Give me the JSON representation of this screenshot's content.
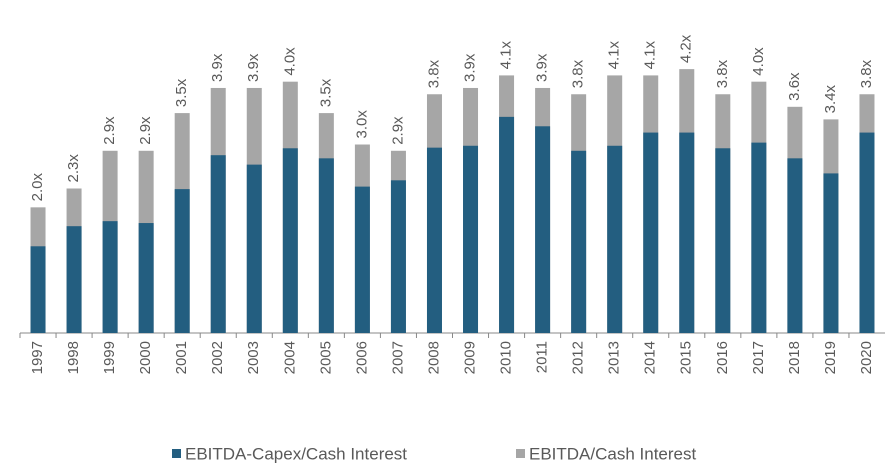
{
  "chart_data": {
    "type": "bar",
    "mode": "overlap",
    "categories": [
      "1997",
      "1998",
      "1999",
      "2000",
      "2001",
      "2002",
      "2003",
      "2004",
      "2005",
      "2006",
      "2007",
      "2008",
      "2009",
      "2010",
      "2011",
      "2012",
      "2013",
      "2014",
      "2015",
      "2016",
      "2017",
      "2018",
      "2019",
      "2020"
    ],
    "series": [
      {
        "name": "EBITDA-Capex/Cash Interest",
        "color": "#235e80",
        "values": [
          1.38,
          1.7,
          1.78,
          1.75,
          2.29,
          2.83,
          2.68,
          2.94,
          2.78,
          2.33,
          2.43,
          2.95,
          2.98,
          3.44,
          3.29,
          2.9,
          2.98,
          3.19,
          3.19,
          2.94,
          3.03,
          2.78,
          2.54,
          3.19
        ]
      },
      {
        "name": "EBITDA/Cash Interest",
        "color": "#a6a6a6",
        "values": [
          2.0,
          2.3,
          2.9,
          2.9,
          3.5,
          3.9,
          3.9,
          4.0,
          3.5,
          3.0,
          2.9,
          3.8,
          3.9,
          4.1,
          3.9,
          3.8,
          4.1,
          4.1,
          4.2,
          3.8,
          4.0,
          3.6,
          3.4,
          3.8
        ],
        "value_labels": [
          "2.0x",
          "2.3x",
          "2.9x",
          "2.9x",
          "3.5x",
          "3.9x",
          "3.9x",
          "4.0x",
          "3.5x",
          "3.0x",
          "2.9x",
          "3.8x",
          "3.9x",
          "4.1x",
          "3.9x",
          "3.8x",
          "4.1x",
          "4.1x",
          "4.2x",
          "3.8x",
          "4.0x",
          "3.6x",
          "3.4x",
          "3.8x"
        ]
      }
    ],
    "ylim": [
      0,
      5.3
    ]
  }
}
